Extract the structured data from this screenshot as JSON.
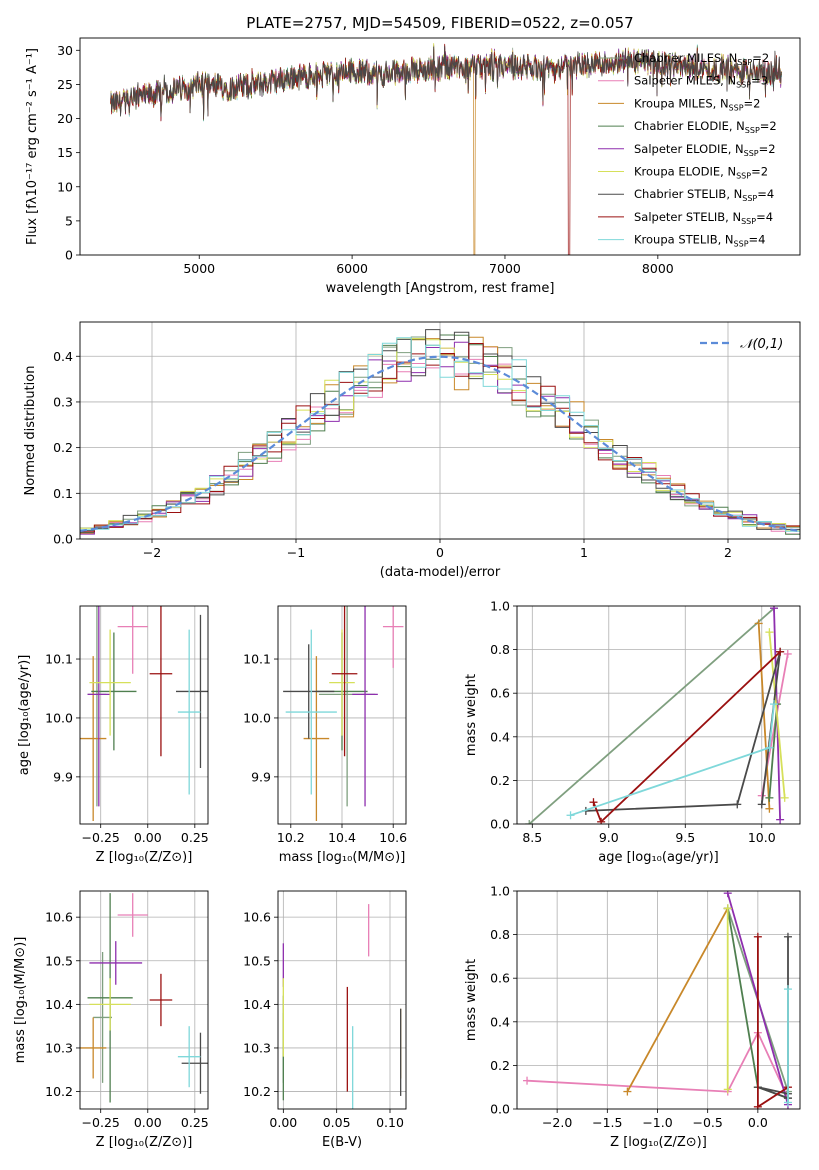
{
  "figure": {
    "title": "PLATE=2757, MJD=54509, FIBERID=0522, z=0.057"
  },
  "colors": [
    "#7f9f7f",
    "#e87fb6",
    "#c8882a",
    "#4f7f4f",
    "#8e2fae",
    "#d6e05a",
    "#4a4a4a",
    "#9a1010",
    "#7fd8da"
  ],
  "chart_data": [
    {
      "id": "spectrum",
      "type": "line",
      "title": "PLATE=2757, MJD=54509, FIBERID=0522, z=0.057",
      "xlabel": "wavelength [Angstrom, rest frame]",
      "ylabel": "Flux [fλ10⁻¹⁷ erg cm⁻² s⁻¹ A⁻¹]",
      "xlim": [
        4220,
        8930
      ],
      "ylim": [
        0,
        31.8
      ],
      "xticks": [
        5000,
        6000,
        7000,
        8000
      ],
      "yticks": [
        0,
        5,
        10,
        15,
        20,
        25,
        30
      ],
      "grid": false,
      "legend": "right",
      "series": [
        {
          "name": "Chabrier MILES, N_SSP=2"
        },
        {
          "name": "Salpeter MILES, N_SSP=3"
        },
        {
          "name": "Kroupa MILES, N_SSP=2"
        },
        {
          "name": "Chabrier ELODIE, N_SSP=2"
        },
        {
          "name": "Salpeter ELODIE, N_SSP=2"
        },
        {
          "name": "Kroupa ELODIE, N_SSP=2"
        },
        {
          "name": "Chabrier STELIB, N_SSP=4"
        },
        {
          "name": "Salpeter STELIB, N_SSP=4"
        },
        {
          "name": "Kroupa STELIB, N_SSP=4"
        }
      ],
      "continuum": {
        "x": [
          4420,
          4600,
          4800,
          5000,
          5200,
          5400,
          5600,
          5800,
          6000,
          6200,
          6400,
          6600,
          6800,
          7000,
          7200,
          7400,
          7600,
          7800,
          8000,
          8200,
          8400,
          8600,
          8800
        ],
        "y": [
          22,
          23,
          24,
          25,
          24.5,
          25,
          26,
          26.5,
          27,
          26.5,
          27,
          27.5,
          27.5,
          27.5,
          27.5,
          27.5,
          28,
          28.5,
          28,
          27.5,
          27,
          27,
          26.5
        ]
      },
      "spectral_range": [
        4420,
        8810
      ],
      "gaps": [
        {
          "series": 2,
          "x": 6800
        },
        {
          "series": 7,
          "x": 7420
        }
      ]
    },
    {
      "id": "residuals",
      "type": "line",
      "xlabel": "(data-model)/error",
      "ylabel": "Normed distribution",
      "xlim": [
        -2.5,
        2.5
      ],
      "ylim": [
        0,
        0.475
      ],
      "xticks": [
        -2,
        -1,
        0,
        1,
        2
      ],
      "yticks": [
        0.0,
        0.1,
        0.2,
        0.3,
        0.4
      ],
      "grid": true,
      "legend": "top-right",
      "reference": {
        "name": "𝒩(0,1)",
        "mean": 0,
        "std": 1
      },
      "bin_width": 0.1
    },
    {
      "id": "age_vs_Z",
      "type": "scatter",
      "xlabel": "Z [log₁₀(Z/Z⊙)]",
      "ylabel": "age [log₁₀(age/yr)]",
      "xlim": [
        -0.36,
        0.32
      ],
      "ylim": [
        9.82,
        10.19
      ],
      "xticks": [
        -0.25,
        0.0,
        0.25
      ],
      "yticks": [
        9.9,
        10.0,
        10.1
      ],
      "grid": true,
      "crosses": [
        {
          "x": -0.27,
          "y": 10.04,
          "xerr": 0.05,
          "yerr": 0.19
        },
        {
          "x": -0.08,
          "y": 10.155,
          "xerr": 0.08,
          "yerr": 0.08
        },
        {
          "x": -0.29,
          "y": 9.965,
          "xerr": 0.07,
          "yerr": 0.14
        },
        {
          "x": -0.18,
          "y": 10.045,
          "xerr": 0.12,
          "yerr": 0.1
        },
        {
          "x": -0.26,
          "y": 10.04,
          "xerr": 0.06,
          "yerr": 0.19
        },
        {
          "x": -0.2,
          "y": 10.06,
          "xerr": 0.11,
          "yerr": 0.09
        },
        {
          "x": 0.28,
          "y": 10.045,
          "xerr": 0.13,
          "yerr": 0.13
        },
        {
          "x": 0.07,
          "y": 10.075,
          "xerr": 0.06,
          "yerr": 0.14
        },
        {
          "x": 0.22,
          "y": 10.01,
          "xerr": 0.06,
          "yerr": 0.14
        }
      ]
    },
    {
      "id": "age_vs_mass",
      "type": "scatter",
      "xlabel": "mass [log₁₀(M/M⊙)]",
      "ylabel": "",
      "xlim": [
        10.15,
        10.65
      ],
      "ylim": [
        9.82,
        10.19
      ],
      "xticks": [
        10.2,
        10.4,
        10.6
      ],
      "yticks": [
        9.9,
        10.0,
        10.1
      ],
      "grid": true,
      "crosses": [
        {
          "x": 10.42,
          "y": 10.04,
          "xerr": 0.11,
          "yerr": 0.19
        },
        {
          "x": 10.6,
          "y": 10.155,
          "xerr": 0.04,
          "yerr": 0.07
        },
        {
          "x": 10.3,
          "y": 9.965,
          "xerr": 0.05,
          "yerr": 0.14
        },
        {
          "x": 10.4,
          "y": 10.045,
          "xerr": 0.1,
          "yerr": 0.1
        },
        {
          "x": 10.49,
          "y": 10.04,
          "xerr": 0.05,
          "yerr": 0.19
        },
        {
          "x": 10.4,
          "y": 10.06,
          "xerr": 0.05,
          "yerr": 0.09
        },
        {
          "x": 10.27,
          "y": 10.045,
          "xerr": 0.1,
          "yerr": 0.08
        },
        {
          "x": 10.41,
          "y": 10.075,
          "xerr": 0.05,
          "yerr": 0.14
        },
        {
          "x": 10.28,
          "y": 10.01,
          "xerr": 0.1,
          "yerr": 0.14
        }
      ]
    },
    {
      "id": "weight_vs_age",
      "type": "line",
      "xlabel": "age  [log₁₀(age/yr)]",
      "ylabel": "mass weight",
      "xlim": [
        8.4,
        10.25
      ],
      "ylim": [
        0,
        1.0
      ],
      "xticks": [
        8.5,
        9.0,
        9.5,
        10.0
      ],
      "yticks": [
        0.0,
        0.2,
        0.4,
        0.6,
        0.8,
        1.0
      ],
      "grid": true,
      "paths": [
        {
          "x": [
            8.48,
            10.08
          ],
          "y": [
            0.0,
            0.99
          ]
        },
        {
          "x": [
            10.0,
            10.17
          ],
          "y": [
            0.13,
            0.78
          ]
        },
        {
          "x": [
            9.98,
            10.05
          ],
          "y": [
            0.92,
            0.07
          ]
        },
        {
          "x": [
            10.05,
            10.1
          ],
          "y": [
            0.12,
            0.55
          ]
        },
        {
          "x": [
            10.08,
            10.12
          ],
          "y": [
            0.99,
            0.02
          ]
        },
        {
          "x": [
            10.05,
            10.15
          ],
          "y": [
            0.88,
            0.12
          ]
        },
        {
          "x": [
            8.85,
            9.84,
            10.12,
            10.0
          ],
          "y": [
            0.06,
            0.09,
            0.79,
            0.09
          ]
        },
        {
          "x": [
            8.9,
            8.95,
            10.12
          ],
          "y": [
            0.1,
            0.01,
            0.79
          ]
        },
        {
          "x": [
            8.75,
            10.05,
            10.08
          ],
          "y": [
            0.04,
            0.35,
            0.55
          ]
        }
      ]
    },
    {
      "id": "mass_vs_Z",
      "type": "scatter",
      "xlabel": "Z [log₁₀(Z/Z⊙)]",
      "ylabel": "mass [log₁₀(M/M⊙)]",
      "xlim": [
        -0.36,
        0.32
      ],
      "ylim": [
        10.16,
        10.66
      ],
      "xticks": [
        -0.25,
        0.0,
        0.25
      ],
      "yticks": [
        10.2,
        10.3,
        10.4,
        10.5,
        10.6
      ],
      "grid": true,
      "crosses": [
        {
          "x": -0.24,
          "y": 10.37,
          "xerr": 0.05,
          "yerr": 0.15
        },
        {
          "x": -0.08,
          "y": 10.605,
          "xerr": 0.08,
          "yerr": 0.05
        },
        {
          "x": -0.29,
          "y": 10.3,
          "xerr": 0.07,
          "yerr": 0.07
        },
        {
          "x": -0.2,
          "y": 10.415,
          "xerr": 0.12,
          "yerr": 0.24
        },
        {
          "x": -0.17,
          "y": 10.495,
          "xerr": 0.14,
          "yerr": 0.05
        },
        {
          "x": -0.2,
          "y": 10.4,
          "xerr": 0.11,
          "yerr": 0.06
        },
        {
          "x": 0.28,
          "y": 10.265,
          "xerr": 0.1,
          "yerr": 0.07
        },
        {
          "x": 0.07,
          "y": 10.41,
          "xerr": 0.06,
          "yerr": 0.06
        },
        {
          "x": 0.22,
          "y": 10.28,
          "xerr": 0.06,
          "yerr": 0.07
        }
      ]
    },
    {
      "id": "mass_vs_EBV",
      "type": "scatter",
      "xlabel": "E(B-V)",
      "ylabel": "",
      "xlim": [
        -0.005,
        0.115
      ],
      "ylim": [
        10.16,
        10.66
      ],
      "xticks": [
        0.0,
        0.05,
        0.1
      ],
      "yticks": [
        10.2,
        10.3,
        10.4,
        10.5,
        10.6
      ],
      "grid": true,
      "crosses": [
        {
          "x": 0.0,
          "y": 10.3,
          "xerr": 0.0,
          "yerr": 0.08
        },
        {
          "x": 0.08,
          "y": 10.57,
          "xerr": 0.0,
          "yerr": 0.06
        },
        {
          "x": 0.11,
          "y": 10.31,
          "xerr": 0.0,
          "yerr": 0.08
        },
        {
          "x": 0.0,
          "y": 10.3,
          "xerr": 0.0,
          "yerr": 0.12
        },
        {
          "x": 0.0,
          "y": 10.49,
          "xerr": 0.0,
          "yerr": 0.05
        },
        {
          "x": 0.0,
          "y": 10.37,
          "xerr": 0.0,
          "yerr": 0.09
        },
        {
          "x": 0.11,
          "y": 10.29,
          "xerr": 0.0,
          "yerr": 0.1
        },
        {
          "x": 0.06,
          "y": 10.32,
          "xerr": 0.0,
          "yerr": 0.12
        },
        {
          "x": 0.065,
          "y": 10.25,
          "xerr": 0.0,
          "yerr": 0.1
        }
      ]
    },
    {
      "id": "weight_vs_Z",
      "type": "line",
      "xlabel": "Z [log₁₀(Z/Z⊙)]",
      "ylabel": "mass weight",
      "xlim": [
        -2.4,
        0.42
      ],
      "ylim": [
        0,
        1.0
      ],
      "xticks": [
        -2.0,
        -1.5,
        -1.0,
        -0.5,
        0.0
      ],
      "yticks": [
        0.0,
        0.2,
        0.4,
        0.6,
        0.8,
        1.0
      ],
      "grid": true,
      "paths": [
        {
          "x": [
            -0.3,
            0.3
          ],
          "y": [
            0.92,
            0.08
          ]
        },
        {
          "x": [
            -2.3,
            -0.3,
            0.0,
            0.3
          ],
          "y": [
            0.13,
            0.08,
            0.35,
            0.05
          ]
        },
        {
          "x": [
            -1.3,
            -0.3
          ],
          "y": [
            0.08,
            0.92
          ]
        },
        {
          "x": [
            -0.3,
            0.0,
            0.3
          ],
          "y": [
            0.92,
            0.1,
            0.05
          ]
        },
        {
          "x": [
            -0.3,
            0.3
          ],
          "y": [
            0.99,
            0.02
          ]
        },
        {
          "x": [
            -0.3,
            -0.3
          ],
          "y": [
            0.92,
            0.09
          ]
        },
        {
          "x": [
            0.3,
            0.3,
            0.0,
            0.3
          ],
          "y": [
            0.79,
            0.05,
            0.1,
            0.07
          ]
        },
        {
          "x": [
            0.0,
            0.0,
            0.3
          ],
          "y": [
            0.79,
            0.01,
            0.1
          ]
        },
        {
          "x": [
            0.3,
            0.3
          ],
          "y": [
            0.55,
            0.03
          ]
        }
      ]
    }
  ]
}
